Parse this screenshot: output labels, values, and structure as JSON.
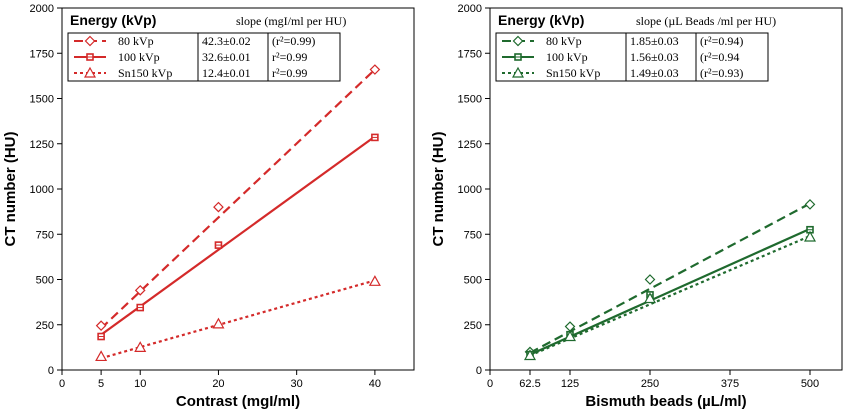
{
  "chart_data": [
    {
      "type": "scatter",
      "xlabel": "Contrast (mgI/ml)",
      "ylabel": "CT number (HU)",
      "xlim": [
        0,
        45
      ],
      "ylim": [
        0,
        2000
      ],
      "xticks": [
        0,
        5,
        10,
        20,
        30,
        40
      ],
      "xtick_labels": [
        "0",
        "5",
        "10",
        "20",
        "30",
        "40"
      ],
      "yticks": [
        0,
        250,
        500,
        750,
        1000,
        1250,
        1500,
        1750,
        2000
      ],
      "ytick_labels": [
        "0",
        "250",
        "500",
        "750",
        "1000",
        "1250",
        "1500",
        "1750",
        "2000"
      ],
      "color": "#d42a2a",
      "legend": {
        "title": "Energy (kVp)",
        "header": "slope (mgI/ml per HU)",
        "placement": "top-left",
        "rows": [
          {
            "label": "80 kVp",
            "slope": "42.3±0.02",
            "r2": "(r²=0.99)"
          },
          {
            "label": "100 kVp",
            "slope": "32.6±0.01",
            "r2": "r²=0.99"
          },
          {
            "label": "Sn150 kVp",
            "slope": "12.4±0.01",
            "r2": "r²=0.99"
          }
        ]
      },
      "series": [
        {
          "name": "80 kVp",
          "marker": "diamond",
          "line": "dashed",
          "x": [
            5,
            10,
            20,
            40
          ],
          "y": [
            245,
            440,
            900,
            1660
          ],
          "fit": [
            [
              5,
              230
            ],
            [
              40,
              1660
            ]
          ]
        },
        {
          "name": "100 kVp",
          "marker": "square",
          "line": "solid",
          "x": [
            5,
            10,
            20,
            40
          ],
          "y": [
            185,
            345,
            690,
            1285
          ],
          "fit": [
            [
              5,
              195
            ],
            [
              40,
              1290
            ]
          ]
        },
        {
          "name": "Sn150 kVp",
          "marker": "triangle",
          "line": "dotted",
          "x": [
            5,
            10,
            20,
            40
          ],
          "y": [
            75,
            125,
            255,
            490
          ],
          "fit": [
            [
              5,
              65
            ],
            [
              40,
              495
            ]
          ]
        }
      ]
    },
    {
      "type": "scatter",
      "xlabel": "Bismuth beads (µL/ml)",
      "ylabel": "CT number (HU)",
      "xlim": [
        0,
        550
      ],
      "ylim": [
        0,
        2000
      ],
      "xticks": [
        0,
        62.5,
        125,
        250,
        375,
        500
      ],
      "xtick_labels": [
        "0",
        "62.5",
        "125",
        "250",
        "375",
        "500"
      ],
      "yticks": [
        0,
        250,
        500,
        750,
        1000,
        1250,
        1500,
        1750,
        2000
      ],
      "ytick_labels": [
        "0",
        "250",
        "500",
        "750",
        "1000",
        "1250",
        "1500",
        "1750",
        "2000"
      ],
      "color": "#1f6a2e",
      "legend": {
        "title": "Energy (kVp)",
        "header": "slope (µL Beads /ml  per HU)",
        "placement": "top-left",
        "rows": [
          {
            "label": "80 kVp",
            "slope": "1.85±0.03",
            "r2": "(r²=0.94)"
          },
          {
            "label": "100 kVp",
            "slope": "1.56±0.03",
            "r2": "(r²=0.94"
          },
          {
            "label": "Sn150 kVp",
            "slope": "1.49±0.03",
            "r2": "(r²=0.93)"
          }
        ]
      },
      "series": [
        {
          "name": "80 kVp",
          "marker": "diamond",
          "line": "dashed",
          "x": [
            62.5,
            125,
            250,
            500
          ],
          "y": [
            100,
            240,
            500,
            915
          ],
          "fit": [
            [
              62.5,
              95
            ],
            [
              500,
              920
            ]
          ]
        },
        {
          "name": "100 kVp",
          "marker": "square",
          "line": "solid",
          "x": [
            62.5,
            125,
            250,
            500
          ],
          "y": [
            85,
            195,
            415,
            775
          ],
          "fit": [
            [
              62.5,
              85
            ],
            [
              500,
              780
            ]
          ]
        },
        {
          "name": "Sn150 kVp",
          "marker": "triangle",
          "line": "dotted",
          "x": [
            62.5,
            125,
            250,
            500
          ],
          "y": [
            80,
            185,
            395,
            735
          ],
          "fit": [
            [
              62.5,
              80
            ],
            [
              500,
              740
            ]
          ]
        }
      ]
    }
  ]
}
